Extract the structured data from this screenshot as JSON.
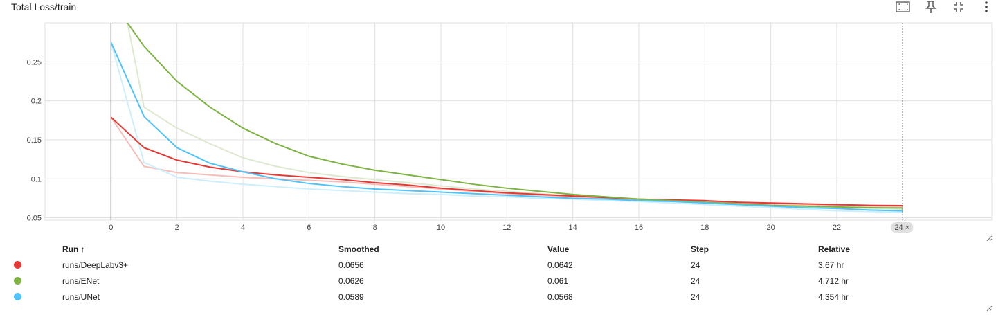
{
  "card": {
    "title": "Total Loss/train"
  },
  "toolbar": {
    "icons": [
      "fit-domain-icon",
      "pin-icon",
      "collapse-icon",
      "more-vert-icon"
    ]
  },
  "chart_data": {
    "type": "line",
    "title": "Total Loss/train",
    "xlabel": "",
    "ylabel": "",
    "xlim": [
      -2,
      26.7
    ],
    "ylim": [
      0.047,
      0.3
    ],
    "x_ticks": [
      0,
      2,
      4,
      6,
      8,
      10,
      12,
      14,
      16,
      18,
      20,
      22
    ],
    "x_tick_labels": [
      "0",
      "2",
      "4",
      "6",
      "8",
      "10",
      "12",
      "14",
      "16",
      "18",
      "20",
      "22"
    ],
    "y_ticks": [
      0.05,
      0.1,
      0.15,
      0.2,
      0.25
    ],
    "y_tick_labels": [
      "0.05",
      "0.1",
      "0.15",
      "0.2",
      "0.25"
    ],
    "grid": true,
    "hover_step_label": "24 ×",
    "series": [
      {
        "name": "runs/DeepLabv3+",
        "color": "#e53935",
        "raw_color": "#f6bdb8",
        "x": [
          0,
          1,
          2,
          3,
          4,
          5,
          6,
          7,
          8,
          9,
          10,
          11,
          12,
          13,
          14,
          15,
          16,
          17,
          18,
          19,
          20,
          21,
          22,
          23,
          24
        ],
        "raw": [
          0.179,
          0.116,
          0.108,
          0.105,
          0.102,
          0.1,
          0.098,
          0.096,
          0.093,
          0.09,
          0.087,
          0.084,
          0.081,
          0.079,
          0.077,
          0.075,
          0.073,
          0.072,
          0.071,
          0.069,
          0.068,
          0.067,
          0.066,
          0.065,
          0.0642
        ],
        "smoothed": [
          0.179,
          0.14,
          0.124,
          0.115,
          0.109,
          0.105,
          0.102,
          0.099,
          0.095,
          0.092,
          0.088,
          0.085,
          0.082,
          0.08,
          0.078,
          0.076,
          0.074,
          0.073,
          0.072,
          0.07,
          0.069,
          0.068,
          0.067,
          0.066,
          0.0656
        ]
      },
      {
        "name": "runs/ENet",
        "color": "#7cb342",
        "raw_color": "#dde9cf",
        "x": [
          0,
          0.5,
          1,
          2,
          3,
          4,
          5,
          6,
          7,
          8,
          9,
          10,
          11,
          12,
          13,
          14,
          15,
          16,
          17,
          18,
          19,
          20,
          21,
          22,
          23,
          24
        ],
        "raw": [
          0.32,
          0.3,
          0.192,
          0.165,
          0.145,
          0.127,
          0.116,
          0.108,
          0.103,
          0.099,
          0.095,
          0.091,
          0.087,
          0.084,
          0.081,
          0.078,
          0.076,
          0.074,
          0.072,
          0.07,
          0.068,
          0.066,
          0.065,
          0.064,
          0.062,
          0.061
        ],
        "smoothed": [
          0.32,
          0.3,
          0.27,
          0.225,
          0.192,
          0.165,
          0.145,
          0.129,
          0.119,
          0.111,
          0.105,
          0.099,
          0.093,
          0.088,
          0.084,
          0.08,
          0.077,
          0.074,
          0.072,
          0.07,
          0.068,
          0.066,
          0.065,
          0.064,
          0.063,
          0.0626
        ]
      },
      {
        "name": "runs/UNet",
        "color": "#4fc3f7",
        "raw_color": "#cdeefc",
        "x": [
          0,
          1,
          2,
          3,
          4,
          5,
          6,
          7,
          8,
          9,
          10,
          11,
          12,
          13,
          14,
          15,
          16,
          17,
          18,
          19,
          20,
          21,
          22,
          23,
          24
        ],
        "raw": [
          0.275,
          0.121,
          0.102,
          0.097,
          0.093,
          0.09,
          0.087,
          0.085,
          0.083,
          0.081,
          0.08,
          0.078,
          0.077,
          0.075,
          0.074,
          0.072,
          0.071,
          0.069,
          0.067,
          0.065,
          0.063,
          0.061,
          0.059,
          0.058,
          0.0568
        ],
        "smoothed": [
          0.275,
          0.18,
          0.14,
          0.12,
          0.109,
          0.1,
          0.094,
          0.09,
          0.087,
          0.085,
          0.083,
          0.081,
          0.079,
          0.077,
          0.075,
          0.074,
          0.072,
          0.071,
          0.069,
          0.067,
          0.065,
          0.063,
          0.062,
          0.06,
          0.0589
        ]
      }
    ]
  },
  "table": {
    "headers": {
      "run": "Run ↑",
      "smoothed": "Smoothed",
      "value": "Value",
      "step": "Step",
      "relative": "Relative"
    },
    "rows": [
      {
        "color": "#e53935",
        "run": "runs/DeepLabv3+",
        "smoothed": "0.0656",
        "value": "0.0642",
        "step": "24",
        "relative": "3.67 hr"
      },
      {
        "color": "#7cb342",
        "run": "runs/ENet",
        "smoothed": "0.0626",
        "value": "0.061",
        "step": "24",
        "relative": "4.712 hr"
      },
      {
        "color": "#4fc3f7",
        "run": "runs/UNet",
        "smoothed": "0.0589",
        "value": "0.0568",
        "step": "24",
        "relative": "4.354 hr"
      }
    ]
  }
}
